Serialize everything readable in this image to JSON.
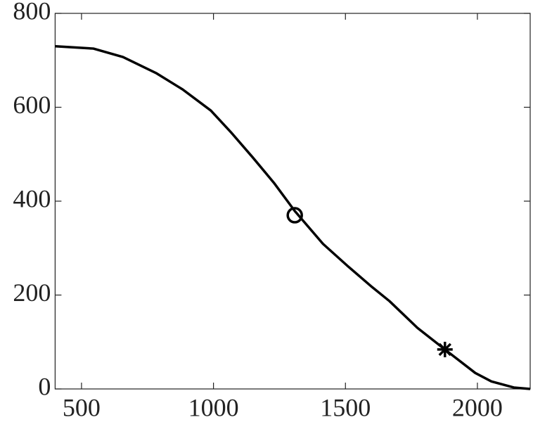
{
  "chart_data": {
    "type": "line",
    "xlim": [
      400,
      2200
    ],
    "xticks": [
      500,
      1000,
      1500,
      2000
    ],
    "ylim": [
      0,
      800
    ],
    "yticks": [
      0,
      200,
      400,
      600,
      800
    ],
    "series": [
      {
        "color": "#000000",
        "marker": "none",
        "x": [
          400,
          545,
          657,
          782,
          883,
          990,
          1069,
          1149,
          1229,
          1308,
          1415,
          1508,
          1601,
          1667,
          1773,
          1877,
          1992,
          2053,
          2138,
          2200
        ],
        "values": [
          730,
          725,
          707,
          673,
          638,
          593,
          545,
          493,
          439,
          379,
          309,
          262,
          217,
          187,
          130,
          84,
          34,
          16,
          3,
          0
        ]
      },
      {
        "color": "#000000",
        "marker": "circle",
        "x": [
          1308
        ],
        "values": [
          370
        ]
      },
      {
        "color": "#000000",
        "marker": "star",
        "x": [
          1877
        ],
        "values": [
          84
        ]
      }
    ]
  }
}
